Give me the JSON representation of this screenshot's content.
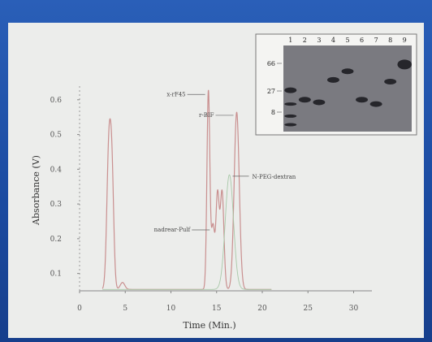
{
  "chart_data": {
    "type": "line",
    "title": "",
    "xlabel": "Time (Min.)",
    "ylabel": "Absorbance (V)",
    "xlim": [
      0,
      32
    ],
    "ylim": [
      0,
      0.58
    ],
    "xticks": [
      0,
      5,
      10,
      15,
      20,
      25,
      30
    ],
    "xtick_labels": [
      "0",
      "5",
      "10",
      "15",
      "20",
      "25",
      "30"
    ],
    "yticks": [
      0.05,
      0.15,
      0.25,
      0.35,
      0.45,
      0.55
    ],
    "ytick_labels": [
      "0.1",
      "0.2",
      "0.3",
      "0.4",
      "0.5",
      "0.6"
    ],
    "colors": {
      "trace": "#c98f8f",
      "trace2": "#a8c8a8",
      "axis": "#888888"
    },
    "series": [
      {
        "peaks": [
          {
            "x": 3.2,
            "y": 0.39,
            "w": 0.22
          },
          {
            "x": 3.55,
            "y": 0.3,
            "w": 0.2
          },
          {
            "x": 4.7,
            "y": 0.02,
            "w": 0.25
          },
          {
            "x": 14.1,
            "y": 0.57,
            "w": 0.16
          },
          {
            "x": 14.6,
            "y": 0.18,
            "w": 0.18
          },
          {
            "x": 15.1,
            "y": 0.27,
            "w": 0.18
          },
          {
            "x": 15.6,
            "y": 0.28,
            "w": 0.2
          },
          {
            "x": 17.2,
            "y": 0.51,
            "w": 0.28
          }
        ]
      },
      {
        "peaks": [
          {
            "x": 16.4,
            "y": 0.33,
            "w": 0.45
          }
        ]
      }
    ],
    "annotations": [
      {
        "text": "x-rF45",
        "x": 14.1,
        "y": 0.57,
        "side": "left"
      },
      {
        "text": "r-BIF",
        "x": 17.2,
        "y": 0.51,
        "side": "left"
      },
      {
        "text": "N-PEG-dextran",
        "x": 16.4,
        "y": 0.33,
        "side": "right"
      },
      {
        "text": "nadrear-Pulf",
        "x": 14.6,
        "y": 0.18,
        "side": "left"
      }
    ],
    "inset": {
      "lanes": [
        "1",
        "2",
        "3",
        "4",
        "5",
        "6",
        "7",
        "8",
        "9"
      ],
      "markers": [
        "66",
        "27",
        "8"
      ]
    }
  }
}
